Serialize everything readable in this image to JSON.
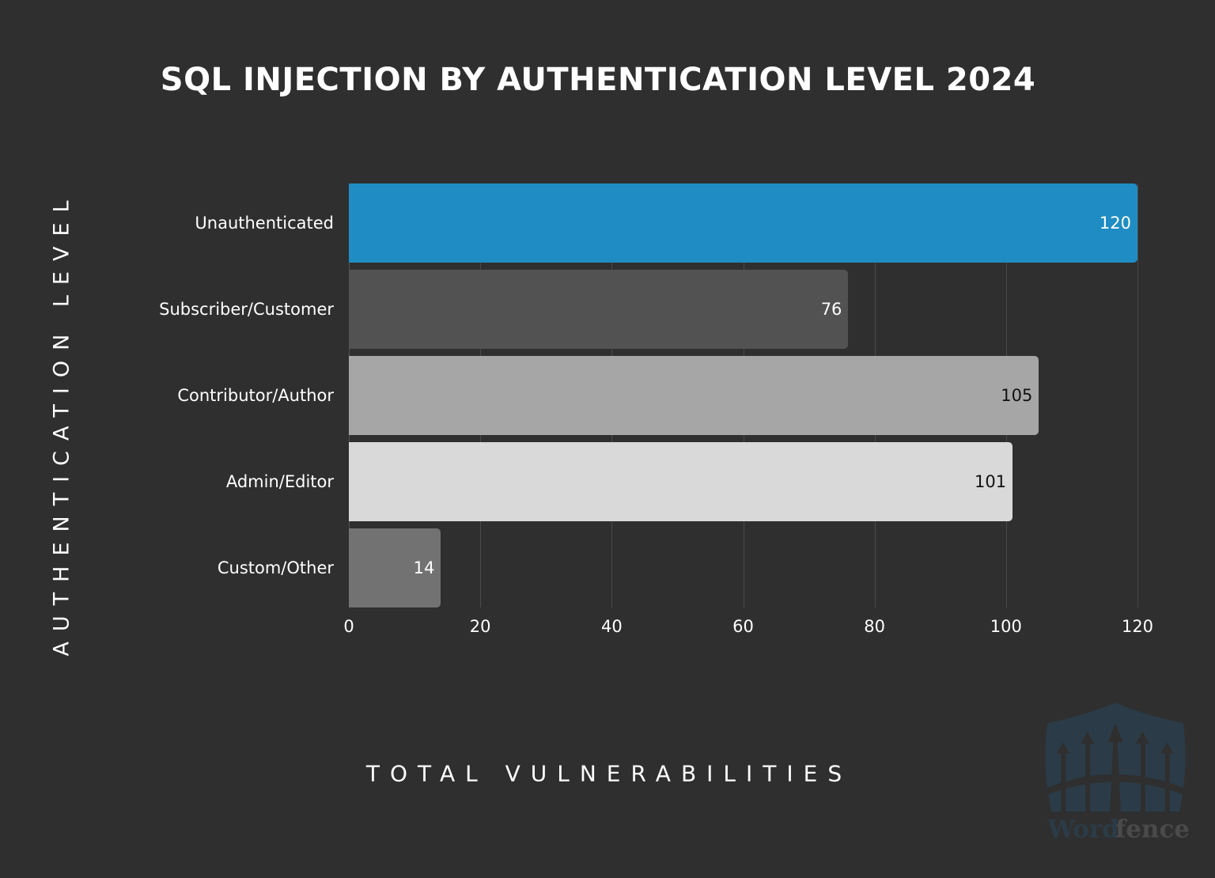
{
  "chart_data": {
    "type": "bar",
    "orientation": "horizontal",
    "title": "SQL INJECTION BY AUTHENTICATION LEVEL 2024",
    "xlabel": "TOTAL VULNERABILITIES",
    "ylabel": "AUTHENTICATION LEVEL",
    "categories": [
      "Unauthenticated",
      "Subscriber/Customer",
      "Contributor/Author",
      "Admin/Editor",
      "Custom/Other"
    ],
    "values": [
      120,
      76,
      105,
      101,
      14
    ],
    "bar_colors": [
      "#1f8dc3",
      "#525252",
      "#a6a6a6",
      "#d9d9d9",
      "#727272"
    ],
    "value_label_colors": [
      "#ffffff",
      "#ffffff",
      "#111111",
      "#111111",
      "#ffffff"
    ],
    "xlim": [
      0,
      120
    ],
    "xticks": [
      0,
      20,
      40,
      60,
      80,
      100,
      120
    ],
    "grid": true,
    "data_labels": true
  },
  "watermark": {
    "brand_part1": "Word",
    "brand_part2": "fence"
  },
  "colors": {
    "background": "#2f2f2f",
    "accent": "#1f8dc3"
  }
}
